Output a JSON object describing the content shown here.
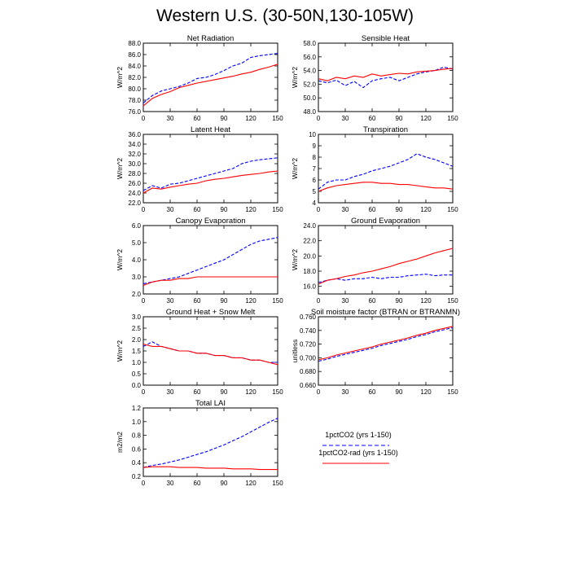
{
  "figure": {
    "title": "Western U.S. (30-50N,130-105W)"
  },
  "legend": {
    "entries": [
      {
        "label": "1pctCO2 (yrs 1-150)",
        "color": "#0000ff",
        "dash": "dashed"
      },
      {
        "label": "1pctCO2-rad (yrs 1-150)",
        "color": "#ff0000",
        "dash": "solid"
      }
    ]
  },
  "chart_data": [
    {
      "type": "line",
      "title": "Net Radiation",
      "ylabel": "W/m^2",
      "xlim": [
        0,
        150
      ],
      "ylim": [
        76,
        88
      ],
      "xticks": [
        0,
        30,
        60,
        90,
        120,
        150
      ],
      "xtick_labels": [
        "0",
        "30",
        "60",
        "90",
        "120",
        "150"
      ],
      "yticks": [
        76,
        78,
        80,
        82,
        84,
        86,
        88
      ],
      "ytick_labels": [
        "76.0",
        "78.0",
        "80.0",
        "82.0",
        "84.0",
        "86.0",
        "88.0"
      ],
      "series": [
        {
          "name": "1pctCO2 (yrs 1-150)",
          "color": "#0000ff",
          "dash": "dashed",
          "x": [
            0,
            10,
            20,
            30,
            40,
            50,
            60,
            70,
            80,
            90,
            100,
            110,
            120,
            130,
            140,
            150
          ],
          "y": [
            77.5,
            78.8,
            79.6,
            80.0,
            80.4,
            81.0,
            81.8,
            82.0,
            82.5,
            83.2,
            84.0,
            84.5,
            85.5,
            85.8,
            86.0,
            86.2
          ]
        },
        {
          "name": "1pctCO2-rad (yrs 1-150)",
          "color": "#ff0000",
          "dash": "solid",
          "x": [
            0,
            10,
            20,
            30,
            40,
            50,
            60,
            70,
            80,
            90,
            100,
            110,
            120,
            130,
            140,
            150
          ],
          "y": [
            77.0,
            78.3,
            79.0,
            79.5,
            80.2,
            80.6,
            81.0,
            81.3,
            81.6,
            81.9,
            82.2,
            82.6,
            82.9,
            83.4,
            83.8,
            84.3
          ]
        }
      ]
    },
    {
      "type": "line",
      "title": "Sensible Heat",
      "ylabel": "W/m^2",
      "xlim": [
        0,
        150
      ],
      "ylim": [
        48,
        58
      ],
      "xticks": [
        0,
        30,
        60,
        90,
        120,
        150
      ],
      "xtick_labels": [
        "0",
        "30",
        "60",
        "90",
        "120",
        "150"
      ],
      "yticks": [
        48,
        50,
        52,
        54,
        56,
        58
      ],
      "ytick_labels": [
        "48.0",
        "50.0",
        "52.0",
        "54.0",
        "56.0",
        "58.0"
      ],
      "series": [
        {
          "name": "1pctCO2 (yrs 1-150)",
          "color": "#0000ff",
          "dash": "dashed",
          "x": [
            0,
            10,
            20,
            30,
            40,
            50,
            60,
            70,
            80,
            90,
            100,
            110,
            120,
            130,
            140,
            150
          ],
          "y": [
            52.5,
            52.2,
            52.6,
            51.8,
            52.4,
            51.5,
            52.5,
            52.8,
            53.0,
            52.5,
            53.0,
            53.5,
            53.8,
            54.0,
            54.5,
            54.2
          ]
        },
        {
          "name": "1pctCO2-rad (yrs 1-150)",
          "color": "#ff0000",
          "dash": "solid",
          "x": [
            0,
            10,
            20,
            30,
            40,
            50,
            60,
            70,
            80,
            90,
            100,
            110,
            120,
            130,
            140,
            150
          ],
          "y": [
            52.8,
            52.5,
            53.0,
            52.8,
            53.2,
            53.0,
            53.5,
            53.2,
            53.4,
            53.6,
            53.5,
            53.8,
            53.9,
            54.0,
            54.2,
            54.3
          ]
        }
      ]
    },
    {
      "type": "line",
      "title": "Latent Heat",
      "ylabel": "W/m^2",
      "xlim": [
        0,
        150
      ],
      "ylim": [
        22,
        36
      ],
      "xticks": [
        0,
        30,
        60,
        90,
        120,
        150
      ],
      "xtick_labels": [
        "0",
        "30",
        "60",
        "90",
        "120",
        "150"
      ],
      "yticks": [
        22,
        24,
        26,
        28,
        30,
        32,
        34,
        36
      ],
      "ytick_labels": [
        "22.0",
        "24.0",
        "26.0",
        "28.0",
        "30.0",
        "32.0",
        "34.0",
        "36.0"
      ],
      "series": [
        {
          "name": "1pctCO2 (yrs 1-150)",
          "color": "#0000ff",
          "dash": "dashed",
          "x": [
            0,
            10,
            20,
            30,
            40,
            50,
            60,
            70,
            80,
            90,
            100,
            110,
            120,
            130,
            140,
            150
          ],
          "y": [
            24.5,
            25.5,
            25.0,
            25.8,
            26.0,
            26.5,
            27.0,
            27.5,
            28.0,
            28.5,
            29.0,
            30.0,
            30.5,
            30.8,
            31.0,
            31.2
          ]
        },
        {
          "name": "1pctCO2-rad (yrs 1-150)",
          "color": "#ff0000",
          "dash": "solid",
          "x": [
            0,
            10,
            20,
            30,
            40,
            50,
            60,
            70,
            80,
            90,
            100,
            110,
            120,
            130,
            140,
            150
          ],
          "y": [
            24.0,
            25.0,
            24.8,
            25.2,
            25.5,
            25.8,
            26.0,
            26.5,
            26.8,
            27.0,
            27.3,
            27.6,
            27.8,
            28.0,
            28.3,
            28.5
          ]
        }
      ]
    },
    {
      "type": "line",
      "title": "Transpiration",
      "ylabel": "W/m^2",
      "xlim": [
        0,
        150
      ],
      "ylim": [
        4,
        10
      ],
      "xticks": [
        0,
        30,
        60,
        90,
        120,
        150
      ],
      "xtick_labels": [
        "0",
        "30",
        "60",
        "90",
        "120",
        "150"
      ],
      "yticks": [
        4,
        5,
        6,
        7,
        8,
        9,
        10
      ],
      "ytick_labels": [
        "4",
        "5",
        "6",
        "7",
        "8",
        "9",
        "10"
      ],
      "series": [
        {
          "name": "1pctCO2 (yrs 1-150)",
          "color": "#0000ff",
          "dash": "dashed",
          "x": [
            0,
            10,
            20,
            30,
            40,
            50,
            60,
            70,
            80,
            90,
            100,
            110,
            120,
            130,
            140,
            150
          ],
          "y": [
            5.2,
            5.8,
            6.0,
            6.0,
            6.3,
            6.5,
            6.8,
            7.0,
            7.2,
            7.5,
            7.8,
            8.3,
            8.0,
            7.8,
            7.5,
            7.2
          ]
        },
        {
          "name": "1pctCO2-rad (yrs 1-150)",
          "color": "#ff0000",
          "dash": "solid",
          "x": [
            0,
            10,
            20,
            30,
            40,
            50,
            60,
            70,
            80,
            90,
            100,
            110,
            120,
            130,
            140,
            150
          ],
          "y": [
            5.0,
            5.3,
            5.5,
            5.6,
            5.7,
            5.8,
            5.8,
            5.7,
            5.7,
            5.6,
            5.6,
            5.5,
            5.4,
            5.3,
            5.3,
            5.2
          ]
        }
      ]
    },
    {
      "type": "line",
      "title": "Canopy Evaporation",
      "ylabel": "W/m^2",
      "xlim": [
        0,
        150
      ],
      "ylim": [
        2,
        6
      ],
      "xticks": [
        0,
        30,
        60,
        90,
        120,
        150
      ],
      "xtick_labels": [
        "0",
        "30",
        "60",
        "90",
        "120",
        "150"
      ],
      "yticks": [
        2,
        3,
        4,
        5,
        6
      ],
      "ytick_labels": [
        "2.0",
        "3.0",
        "4.0",
        "5.0",
        "6.0"
      ],
      "series": [
        {
          "name": "1pctCO2 (yrs 1-150)",
          "color": "#0000ff",
          "dash": "dashed",
          "x": [
            0,
            10,
            20,
            30,
            40,
            50,
            60,
            70,
            80,
            90,
            100,
            110,
            120,
            130,
            140,
            150
          ],
          "y": [
            2.6,
            2.7,
            2.8,
            2.9,
            3.0,
            3.2,
            3.4,
            3.6,
            3.8,
            4.0,
            4.3,
            4.6,
            4.9,
            5.1,
            5.2,
            5.3
          ]
        },
        {
          "name": "1pctCO2-rad (yrs 1-150)",
          "color": "#ff0000",
          "dash": "solid",
          "x": [
            0,
            10,
            20,
            30,
            40,
            50,
            60,
            70,
            80,
            90,
            100,
            110,
            120,
            130,
            140,
            150
          ],
          "y": [
            2.5,
            2.7,
            2.8,
            2.8,
            2.9,
            2.9,
            3.0,
            3.0,
            3.0,
            3.0,
            3.0,
            3.0,
            3.0,
            3.0,
            3.0,
            3.0
          ]
        }
      ]
    },
    {
      "type": "line",
      "title": "Ground Evaporation",
      "ylabel": "W/m^2",
      "xlim": [
        0,
        150
      ],
      "ylim": [
        15,
        24
      ],
      "xticks": [
        0,
        30,
        60,
        90,
        120,
        150
      ],
      "xtick_labels": [
        "0",
        "30",
        "60",
        "90",
        "120",
        "150"
      ],
      "yticks": [
        16,
        18,
        20,
        22,
        24
      ],
      "ytick_labels": [
        "16.0",
        "18.0",
        "20.0",
        "22.0",
        "24.0"
      ],
      "series": [
        {
          "name": "1pctCO2 (yrs 1-150)",
          "color": "#0000ff",
          "dash": "dashed",
          "x": [
            0,
            10,
            20,
            30,
            40,
            50,
            60,
            70,
            80,
            90,
            100,
            110,
            120,
            130,
            140,
            150
          ],
          "y": [
            16.5,
            16.8,
            17.0,
            16.8,
            17.0,
            17.0,
            17.2,
            17.0,
            17.2,
            17.2,
            17.4,
            17.5,
            17.6,
            17.4,
            17.5,
            17.5
          ]
        },
        {
          "name": "1pctCO2-rad (yrs 1-150)",
          "color": "#ff0000",
          "dash": "solid",
          "x": [
            0,
            10,
            20,
            30,
            40,
            50,
            60,
            70,
            80,
            90,
            100,
            110,
            120,
            130,
            140,
            150
          ],
          "y": [
            16.3,
            16.8,
            17.0,
            17.3,
            17.5,
            17.8,
            18.0,
            18.3,
            18.6,
            19.0,
            19.3,
            19.6,
            20.0,
            20.4,
            20.7,
            21.0
          ]
        }
      ]
    },
    {
      "type": "line",
      "title": "Ground Heat + Snow Melt",
      "ylabel": "W/m^2",
      "xlim": [
        0,
        150
      ],
      "ylim": [
        0,
        3
      ],
      "xticks": [
        0,
        30,
        60,
        90,
        120,
        150
      ],
      "xtick_labels": [
        "0",
        "30",
        "60",
        "90",
        "120",
        "150"
      ],
      "yticks": [
        0,
        0.5,
        1,
        1.5,
        2,
        2.5,
        3
      ],
      "ytick_labels": [
        "0.0",
        "0.5",
        "1.0",
        "1.5",
        "2.0",
        "2.5",
        "3.0"
      ],
      "series": [
        {
          "name": "1pctCO2 (yrs 1-150)",
          "color": "#0000ff",
          "dash": "dashed",
          "x": [
            0,
            10,
            20,
            30,
            40,
            50,
            60,
            70,
            80,
            90,
            100,
            110,
            120,
            130,
            140,
            150
          ],
          "y": [
            1.7,
            1.9,
            1.7,
            1.6,
            1.5,
            1.5,
            1.4,
            1.4,
            1.3,
            1.3,
            1.2,
            1.2,
            1.1,
            1.1,
            1.0,
            1.0
          ]
        },
        {
          "name": "1pctCO2-rad (yrs 1-150)",
          "color": "#ff0000",
          "dash": "solid",
          "x": [
            0,
            10,
            20,
            30,
            40,
            50,
            60,
            70,
            80,
            90,
            100,
            110,
            120,
            130,
            140,
            150
          ],
          "y": [
            1.8,
            1.7,
            1.7,
            1.6,
            1.5,
            1.5,
            1.4,
            1.4,
            1.3,
            1.3,
            1.2,
            1.2,
            1.1,
            1.1,
            1.0,
            0.9
          ]
        }
      ]
    },
    {
      "type": "line",
      "title": "Soil moisture factor (BTRAN or BTRANMN)",
      "ylabel": "unitless",
      "xlim": [
        0,
        150
      ],
      "ylim": [
        0.66,
        0.76
      ],
      "xticks": [
        0,
        30,
        60,
        90,
        120,
        150
      ],
      "xtick_labels": [
        "0",
        "30",
        "60",
        "90",
        "120",
        "150"
      ],
      "yticks": [
        0.66,
        0.68,
        0.7,
        0.72,
        0.74,
        0.76
      ],
      "ytick_labels": [
        "0.660",
        "0.680",
        "0.700",
        "0.720",
        "0.740",
        "0.760"
      ],
      "series": [
        {
          "name": "1pctCO2 (yrs 1-150)",
          "color": "#0000ff",
          "dash": "dashed",
          "x": [
            0,
            10,
            20,
            30,
            40,
            50,
            60,
            70,
            80,
            90,
            100,
            110,
            120,
            130,
            140,
            150
          ],
          "y": [
            0.695,
            0.698,
            0.702,
            0.705,
            0.708,
            0.711,
            0.714,
            0.718,
            0.721,
            0.724,
            0.727,
            0.731,
            0.734,
            0.738,
            0.741,
            0.744
          ]
        },
        {
          "name": "1pctCO2-rad (yrs 1-150)",
          "color": "#ff0000",
          "dash": "solid",
          "x": [
            0,
            10,
            20,
            30,
            40,
            50,
            60,
            70,
            80,
            90,
            100,
            110,
            120,
            130,
            140,
            150
          ],
          "y": [
            0.697,
            0.7,
            0.704,
            0.707,
            0.71,
            0.713,
            0.716,
            0.72,
            0.723,
            0.726,
            0.729,
            0.733,
            0.736,
            0.74,
            0.743,
            0.746
          ]
        }
      ]
    },
    {
      "type": "line",
      "title": "Total LAI",
      "ylabel": "m2/m2",
      "xlim": [
        0,
        150
      ],
      "ylim": [
        0.2,
        1.2
      ],
      "xticks": [
        0,
        30,
        60,
        90,
        120,
        150
      ],
      "xtick_labels": [
        "0",
        "30",
        "60",
        "90",
        "120",
        "150"
      ],
      "yticks": [
        0.2,
        0.4,
        0.6,
        0.8,
        1.0,
        1.2
      ],
      "ytick_labels": [
        "0.2",
        "0.4",
        "0.6",
        "0.8",
        "1.0",
        "1.2"
      ],
      "series": [
        {
          "name": "1pctCO2 (yrs 1-150)",
          "color": "#0000ff",
          "dash": "dashed",
          "x": [
            0,
            10,
            20,
            30,
            40,
            50,
            60,
            70,
            80,
            90,
            100,
            110,
            120,
            130,
            140,
            150
          ],
          "y": [
            0.33,
            0.36,
            0.38,
            0.41,
            0.44,
            0.48,
            0.52,
            0.56,
            0.61,
            0.66,
            0.72,
            0.78,
            0.85,
            0.92,
            0.99,
            1.05
          ]
        },
        {
          "name": "1pctCO2-rad (yrs 1-150)",
          "color": "#ff0000",
          "dash": "solid",
          "x": [
            0,
            10,
            20,
            30,
            40,
            50,
            60,
            70,
            80,
            90,
            100,
            110,
            120,
            130,
            140,
            150
          ],
          "y": [
            0.33,
            0.34,
            0.34,
            0.34,
            0.33,
            0.33,
            0.33,
            0.32,
            0.32,
            0.32,
            0.31,
            0.31,
            0.31,
            0.3,
            0.3,
            0.3
          ]
        }
      ]
    }
  ]
}
